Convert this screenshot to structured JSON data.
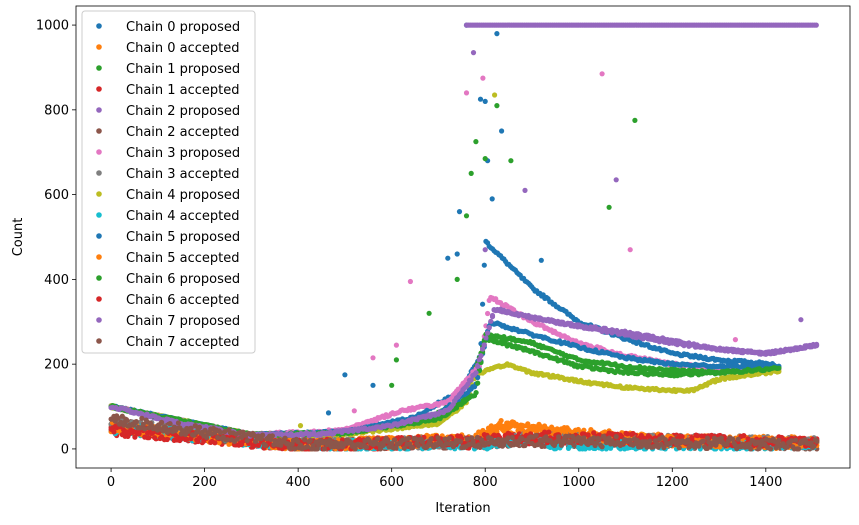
{
  "chart_data": {
    "type": "scatter",
    "title": "",
    "xlabel": "Iteration",
    "ylabel": "Count",
    "xlim": [
      -75,
      1580
    ],
    "ylim": [
      -45,
      1045
    ],
    "xticks": [
      0,
      200,
      400,
      600,
      800,
      1000,
      1200,
      1400
    ],
    "yticks": [
      0,
      200,
      400,
      600,
      800,
      1000
    ],
    "grid": false,
    "legend_position": "upper-left",
    "series": [
      {
        "name": "Chain 0 proposed",
        "color": "#1f77b4",
        "kind": "proposed",
        "trend": [
          [
            0,
            100
          ],
          [
            300,
            33
          ],
          [
            500,
            40
          ],
          [
            650,
            75
          ],
          [
            750,
            140
          ],
          [
            790,
            220
          ],
          [
            800,
            490
          ],
          [
            900,
            380
          ],
          [
            1000,
            300
          ],
          [
            1100,
            260
          ],
          [
            1200,
            225
          ],
          [
            1300,
            210
          ],
          [
            1420,
            200
          ]
        ],
        "outliers": [
          [
            465,
            85
          ],
          [
            500,
            175
          ],
          [
            560,
            150
          ],
          [
            720,
            450
          ],
          [
            740,
            460
          ],
          [
            745,
            560
          ],
          [
            760,
            1000
          ],
          [
            790,
            825
          ],
          [
            800,
            820
          ],
          [
            805,
            680
          ],
          [
            815,
            590
          ],
          [
            825,
            980
          ],
          [
            835,
            750
          ],
          [
            920,
            445
          ]
        ]
      },
      {
        "name": "Chain 0 accepted",
        "color": "#ff7f0e",
        "kind": "accepted",
        "trend": [
          [
            0,
            55
          ],
          [
            400,
            10
          ],
          [
            780,
            20
          ],
          [
            830,
            50
          ],
          [
            880,
            45
          ],
          [
            1000,
            30
          ],
          [
            1200,
            20
          ],
          [
            1510,
            15
          ]
        ]
      },
      {
        "name": "Chain 1 proposed",
        "color": "#2ca02c",
        "kind": "proposed",
        "trend": [
          [
            0,
            100
          ],
          [
            300,
            33
          ],
          [
            500,
            35
          ],
          [
            680,
            75
          ],
          [
            760,
            120
          ],
          [
            800,
            260
          ],
          [
            900,
            230
          ],
          [
            1000,
            195
          ],
          [
            1100,
            180
          ],
          [
            1200,
            175
          ],
          [
            1300,
            180
          ],
          [
            1430,
            190
          ]
        ],
        "outliers": [
          [
            600,
            150
          ],
          [
            610,
            210
          ],
          [
            680,
            320
          ],
          [
            740,
            400
          ],
          [
            760,
            550
          ],
          [
            770,
            650
          ],
          [
            780,
            725
          ],
          [
            800,
            685
          ],
          [
            825,
            810
          ],
          [
            855,
            680
          ],
          [
            1065,
            570
          ],
          [
            1120,
            775
          ]
        ]
      },
      {
        "name": "Chain 1 accepted",
        "color": "#d62728",
        "kind": "accepted",
        "trend": [
          [
            0,
            45
          ],
          [
            400,
            8
          ],
          [
            780,
            15
          ],
          [
            900,
            25
          ],
          [
            1200,
            20
          ],
          [
            1510,
            12
          ]
        ]
      },
      {
        "name": "Chain 2 proposed",
        "color": "#9467bd",
        "kind": "proposed",
        "trend": [
          [
            0,
            100
          ],
          [
            150,
            60
          ],
          [
            300,
            32
          ],
          [
            450,
            35
          ],
          [
            600,
            55
          ],
          [
            720,
            90
          ],
          [
            780,
            180
          ],
          [
            820,
            330
          ],
          [
            900,
            310
          ],
          [
            1000,
            290
          ],
          [
            1100,
            275
          ],
          [
            1200,
            255
          ],
          [
            1300,
            235
          ],
          [
            1400,
            225
          ],
          [
            1510,
            245
          ]
        ],
        "outliers": [
          [
            775,
            935
          ],
          [
            800,
            470
          ],
          [
            885,
            610
          ],
          [
            1080,
            635
          ],
          [
            1475,
            305
          ]
        ],
        "plateau": {
          "y": 1000,
          "x": [
            760,
            1510
          ]
        }
      },
      {
        "name": "Chain 2 accepted",
        "color": "#8c564b",
        "kind": "accepted",
        "trend": [
          [
            0,
            65
          ],
          [
            400,
            8
          ],
          [
            780,
            15
          ],
          [
            900,
            18
          ],
          [
            1510,
            10
          ]
        ]
      },
      {
        "name": "Chain 3 proposed",
        "color": "#e377c2",
        "kind": "proposed",
        "trend": [
          [
            0,
            100
          ],
          [
            300,
            33
          ],
          [
            500,
            45
          ],
          [
            620,
            90
          ],
          [
            720,
            110
          ],
          [
            790,
            200
          ],
          [
            810,
            360
          ],
          [
            900,
            300
          ],
          [
            1000,
            250
          ],
          [
            1100,
            220
          ],
          [
            1200,
            200
          ],
          [
            1300,
            190
          ],
          [
            1430,
            185
          ]
        ],
        "outliers": [
          [
            520,
            90
          ],
          [
            560,
            215
          ],
          [
            610,
            245
          ],
          [
            640,
            395
          ],
          [
            760,
            840
          ],
          [
            795,
            875
          ],
          [
            1050,
            885
          ],
          [
            1110,
            470
          ],
          [
            1335,
            258
          ]
        ]
      },
      {
        "name": "Chain 3 accepted",
        "color": "#7f7f7f",
        "kind": "accepted",
        "trend": [
          [
            0,
            60
          ],
          [
            400,
            10
          ],
          [
            780,
            18
          ],
          [
            900,
            25
          ],
          [
            1200,
            20
          ],
          [
            1510,
            15
          ]
        ]
      },
      {
        "name": "Chain 4 proposed",
        "color": "#bcbd22",
        "kind": "proposed",
        "trend": [
          [
            0,
            100
          ],
          [
            300,
            33
          ],
          [
            500,
            35
          ],
          [
            700,
            60
          ],
          [
            760,
            110
          ],
          [
            780,
            175
          ],
          [
            820,
            190
          ],
          [
            845,
            200
          ],
          [
            900,
            180
          ],
          [
            1000,
            160
          ],
          [
            1100,
            145
          ],
          [
            1200,
            138
          ],
          [
            1250,
            140
          ],
          [
            1300,
            165
          ],
          [
            1400,
            180
          ],
          [
            1430,
            185
          ]
        ],
        "outliers": [
          [
            405,
            55
          ],
          [
            820,
            835
          ]
        ]
      },
      {
        "name": "Chain 4 accepted",
        "color": "#17becf",
        "kind": "accepted",
        "trend": [
          [
            0,
            50
          ],
          [
            400,
            8
          ],
          [
            780,
            10
          ],
          [
            830,
            15
          ],
          [
            920,
            20
          ],
          [
            960,
            8
          ],
          [
            1200,
            10
          ],
          [
            1510,
            8
          ]
        ]
      },
      {
        "name": "Chain 5 proposed",
        "color": "#1f77b4",
        "kind": "proposed",
        "trend": [
          [
            0,
            100
          ],
          [
            300,
            33
          ],
          [
            500,
            40
          ],
          [
            700,
            80
          ],
          [
            780,
            150
          ],
          [
            810,
            300
          ],
          [
            900,
            270
          ],
          [
            1000,
            240
          ],
          [
            1100,
            215
          ],
          [
            1200,
            200
          ],
          [
            1300,
            195
          ],
          [
            1430,
            195
          ]
        ],
        "outliers": []
      },
      {
        "name": "Chain 5 accepted",
        "color": "#ff7f0e",
        "kind": "accepted",
        "trend": [
          [
            0,
            50
          ],
          [
            400,
            8
          ],
          [
            780,
            25
          ],
          [
            830,
            55
          ],
          [
            900,
            48
          ],
          [
            1000,
            35
          ],
          [
            1200,
            20
          ],
          [
            1510,
            12
          ]
        ]
      },
      {
        "name": "Chain 6 proposed",
        "color": "#2ca02c",
        "kind": "proposed",
        "trend": [
          [
            0,
            100
          ],
          [
            300,
            33
          ],
          [
            500,
            38
          ],
          [
            700,
            70
          ],
          [
            780,
            130
          ],
          [
            800,
            270
          ],
          [
            900,
            250
          ],
          [
            1000,
            210
          ],
          [
            1100,
            195
          ],
          [
            1200,
            185
          ],
          [
            1300,
            180
          ],
          [
            1430,
            190
          ]
        ],
        "outliers": []
      },
      {
        "name": "Chain 6 accepted",
        "color": "#d62728",
        "kind": "accepted",
        "trend": [
          [
            0,
            45
          ],
          [
            400,
            8
          ],
          [
            780,
            20
          ],
          [
            900,
            28
          ],
          [
            1200,
            22
          ],
          [
            1510,
            15
          ]
        ]
      },
      {
        "name": "Chain 7 proposed",
        "color": "#9467bd",
        "kind": "proposed",
        "trend": [
          [
            0,
            100
          ],
          [
            150,
            60
          ],
          [
            300,
            32
          ],
          [
            450,
            35
          ],
          [
            600,
            55
          ],
          [
            720,
            90
          ],
          [
            780,
            180
          ],
          [
            820,
            330
          ],
          [
            900,
            310
          ],
          [
            1000,
            290
          ],
          [
            1100,
            270
          ],
          [
            1200,
            250
          ],
          [
            1300,
            235
          ],
          [
            1400,
            225
          ],
          [
            1510,
            245
          ]
        ],
        "outliers": []
      },
      {
        "name": "Chain 7 accepted",
        "color": "#8c564b",
        "kind": "accepted",
        "trend": [
          [
            0,
            70
          ],
          [
            400,
            10
          ],
          [
            780,
            15
          ],
          [
            900,
            20
          ],
          [
            1200,
            15
          ],
          [
            1510,
            10
          ]
        ]
      }
    ]
  }
}
